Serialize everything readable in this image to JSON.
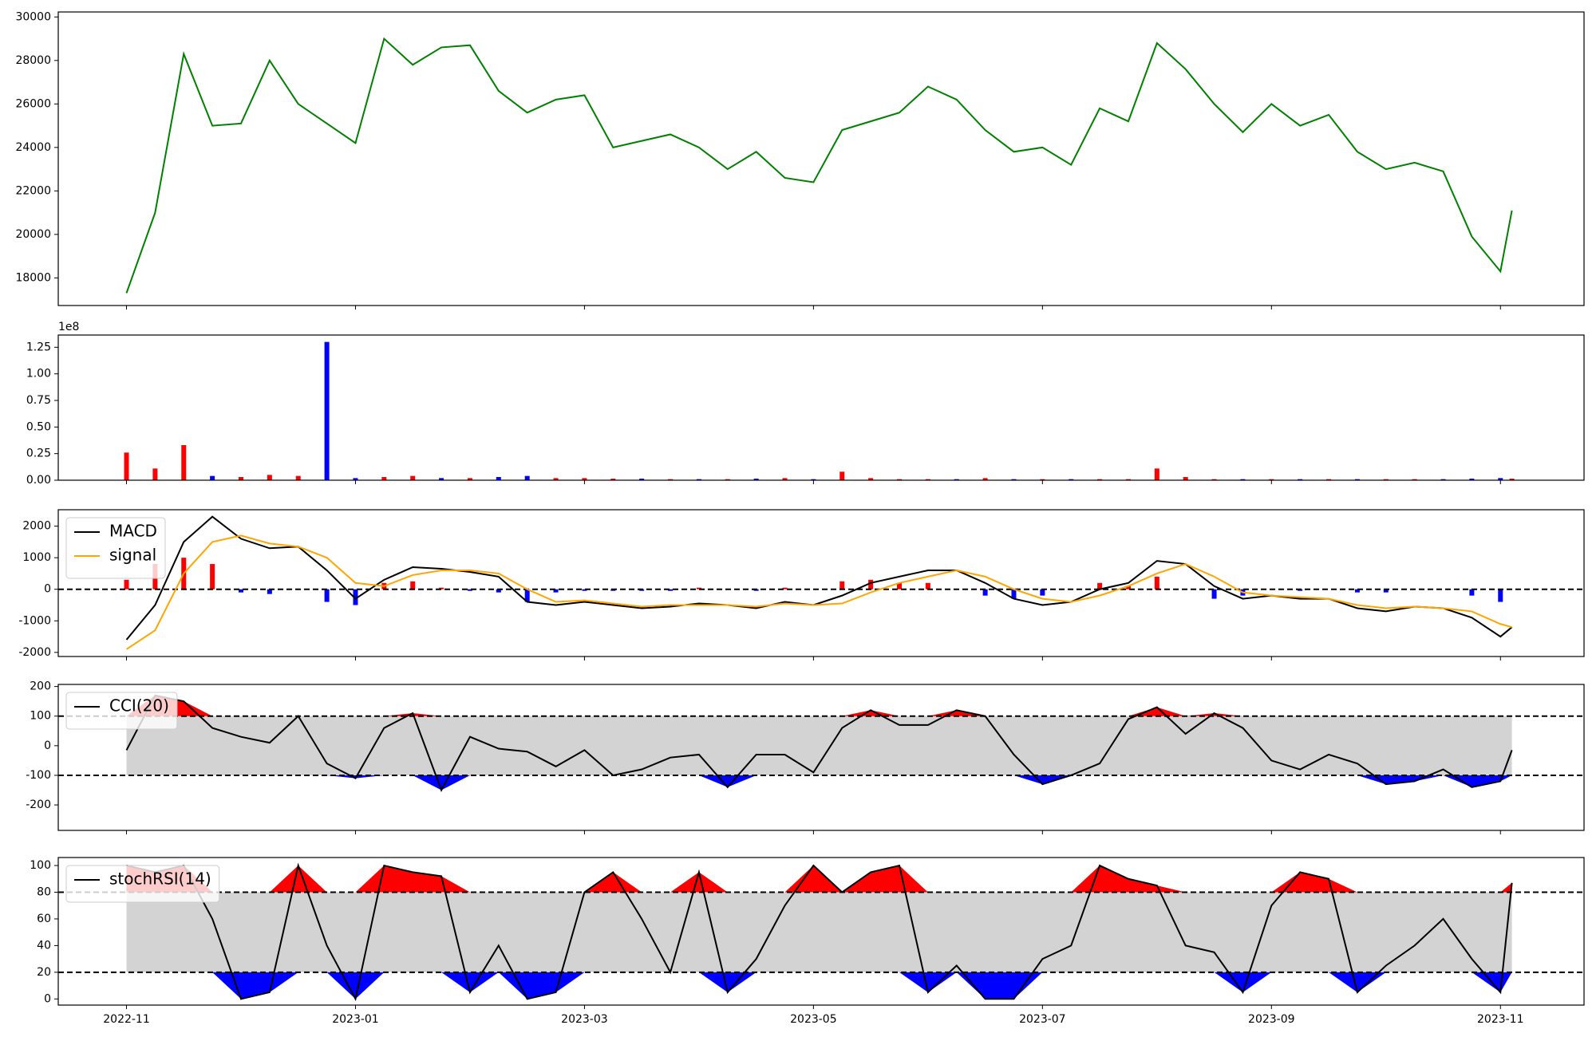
{
  "chart_data": [
    {
      "type": "line",
      "color": "green",
      "x": [
        0,
        0.25,
        0.5,
        0.75,
        1,
        1.25,
        1.5,
        1.75,
        2,
        2.25,
        2.5,
        2.75,
        3,
        3.25,
        3.5,
        3.75,
        4,
        4.25,
        4.5,
        4.75,
        5,
        5.25,
        5.5,
        5.75,
        6,
        6.25,
        6.5,
        6.75,
        7,
        7.25,
        7.5,
        7.75,
        8,
        8.25,
        8.5,
        8.75,
        9,
        9.25,
        9.5,
        9.75,
        10,
        10.25,
        10.5,
        10.75,
        11,
        11.25,
        11.5,
        11.75,
        12,
        12.1
      ],
      "values": [
        17300,
        21000,
        28300,
        25000,
        25100,
        28000,
        26000,
        25100,
        24200,
        29000,
        27800,
        28600,
        28700,
        26600,
        25600,
        26200,
        26400,
        24000,
        24300,
        24600,
        24000,
        23000,
        23800,
        22600,
        22400,
        24800,
        25200,
        25600,
        26800,
        26200,
        24800,
        23800,
        24000,
        23200,
        25800,
        25200,
        28800,
        27600,
        26000,
        24700,
        26000,
        25000,
        25500,
        23800,
        23000,
        23300,
        22900,
        19900,
        18300,
        21100
      ],
      "xlim": [
        -0.596,
        12.73
      ],
      "ylim": [
        16730,
        30230
      ],
      "yticks": [
        18000,
        20000,
        22000,
        24000,
        26000,
        28000,
        30000
      ]
    },
    {
      "type": "bar",
      "y_offset_label": "1e8",
      "x": [
        0,
        0.25,
        0.5,
        0.75,
        1,
        1.25,
        1.5,
        1.75,
        2,
        2.25,
        2.5,
        2.75,
        3,
        3.25,
        3.5,
        3.75,
        4,
        4.25,
        4.5,
        4.75,
        5,
        5.25,
        5.5,
        5.75,
        6,
        6.25,
        6.5,
        6.75,
        7,
        7.25,
        7.5,
        7.75,
        8,
        8.25,
        8.5,
        8.75,
        9,
        9.25,
        9.5,
        9.75,
        10,
        10.25,
        10.5,
        10.75,
        11,
        11.25,
        11.5,
        11.75,
        12,
        12.1
      ],
      "values": [
        26000000,
        11000000,
        33000000,
        4000000,
        3000000,
        5000000,
        4000000,
        130000000,
        2000000,
        3000000,
        4000000,
        2000000,
        2000000,
        3000000,
        4000000,
        2000000,
        2000000,
        1500000,
        1500000,
        1000000,
        1000000,
        1000000,
        1500000,
        2000000,
        1000000,
        8000000,
        2000000,
        1000000,
        1000000,
        1000000,
        2000000,
        1000000,
        1000000,
        1000000,
        1000000,
        1000000,
        11000000,
        3000000,
        1000000,
        1000000,
        1000000,
        1000000,
        1000000,
        1000000,
        1000000,
        1000000,
        1000000,
        1500000,
        2000000,
        1500000
      ],
      "colors": [
        "red",
        "red",
        "red",
        "blue",
        "red",
        "red",
        "red",
        "blue",
        "blue",
        "red",
        "red",
        "blue",
        "red",
        "blue",
        "blue",
        "red",
        "red",
        "red",
        "blue",
        "red",
        "blue",
        "red",
        "blue",
        "red",
        "blue",
        "red",
        "red",
        "red",
        "red",
        "blue",
        "red",
        "blue",
        "red",
        "blue",
        "red",
        "red",
        "red",
        "red",
        "red",
        "blue",
        "red",
        "blue",
        "red",
        "blue",
        "red",
        "red",
        "blue",
        "blue",
        "blue",
        "red"
      ],
      "xlim": [
        -0.596,
        12.73
      ],
      "ylim": [
        0,
        136500000
      ],
      "yticks": [
        {
          "value": 0,
          "label": "0.00"
        },
        {
          "value": 25000000,
          "label": "0.25"
        },
        {
          "value": 50000000,
          "label": "0.50"
        },
        {
          "value": 75000000,
          "label": "0.75"
        },
        {
          "value": 100000000,
          "label": "1.00"
        },
        {
          "value": 125000000,
          "label": "1.25"
        }
      ]
    },
    {
      "type": "macd",
      "legend": "upper left",
      "hlines": [
        0
      ],
      "x": [
        0,
        0.25,
        0.5,
        0.75,
        1,
        1.25,
        1.5,
        1.75,
        2,
        2.25,
        2.5,
        2.75,
        3,
        3.25,
        3.5,
        3.75,
        4,
        4.25,
        4.5,
        4.75,
        5,
        5.25,
        5.5,
        5.75,
        6,
        6.25,
        6.5,
        6.75,
        7,
        7.25,
        7.5,
        7.75,
        8,
        8.25,
        8.5,
        8.75,
        9,
        9.25,
        9.5,
        9.75,
        10,
        10.25,
        10.5,
        10.75,
        11,
        11.25,
        11.5,
        11.75,
        12,
        12.1
      ],
      "histogram": {
        "up_color": "red",
        "down_color": "blue",
        "values": [
          300,
          800,
          1000,
          800,
          -100,
          -150,
          0,
          -400,
          -500,
          200,
          250,
          50,
          -50,
          -100,
          -400,
          -100,
          -50,
          -50,
          -50,
          -50,
          50,
          0,
          -50,
          50,
          0,
          250,
          300,
          200,
          200,
          0,
          -200,
          -300,
          -200,
          0,
          200,
          100,
          400,
          0,
          -300,
          -200,
          0,
          -50,
          0,
          -100,
          -100,
          0,
          0,
          -200,
          -400,
          0
        ]
      },
      "series": [
        {
          "name": "MACD",
          "color": "black",
          "values": [
            -1600,
            -500,
            1500,
            2300,
            1600,
            1300,
            1350,
            600,
            -300,
            300,
            700,
            650,
            550,
            400,
            -400,
            -500,
            -400,
            -500,
            -600,
            -550,
            -450,
            -500,
            -600,
            -400,
            -500,
            -200,
            200,
            400,
            600,
            600,
            200,
            -300,
            -500,
            -400,
            0,
            200,
            900,
            800,
            100,
            -300,
            -200,
            -300,
            -300,
            -600,
            -700,
            -550,
            -600,
            -900,
            -1500,
            -1200
          ]
        },
        {
          "name": "signal",
          "color": "orange",
          "values": [
            -1900,
            -1300,
            500,
            1500,
            1700,
            1450,
            1350,
            1000,
            200,
            100,
            450,
            600,
            600,
            500,
            0,
            -400,
            -350,
            -450,
            -550,
            -500,
            -500,
            -500,
            -550,
            -450,
            -500,
            -450,
            -100,
            200,
            400,
            600,
            400,
            0,
            -300,
            -400,
            -200,
            100,
            500,
            800,
            400,
            -100,
            -200,
            -250,
            -300,
            -500,
            -600,
            -550,
            -600,
            -700,
            -1100,
            -1200
          ]
        }
      ],
      "xlim": [
        -0.596,
        12.73
      ],
      "ylim": [
        -2130,
        2520
      ],
      "yticks": [
        -2000,
        -1000,
        0,
        1000,
        2000
      ]
    },
    {
      "type": "oscillator",
      "legend": "upper left",
      "hlines": [
        -100,
        100
      ],
      "band_color": "lightgrey",
      "over_color": "red",
      "under_color": "blue",
      "x": [
        0,
        0.25,
        0.5,
        0.75,
        1,
        1.25,
        1.5,
        1.75,
        2,
        2.25,
        2.5,
        2.75,
        3,
        3.25,
        3.5,
        3.75,
        4,
        4.25,
        4.5,
        4.75,
        5,
        5.25,
        5.5,
        5.75,
        6,
        6.25,
        6.5,
        6.75,
        7,
        7.25,
        7.5,
        7.75,
        8,
        8.25,
        8.5,
        8.75,
        9,
        9.25,
        9.5,
        9.75,
        10,
        10.25,
        10.5,
        10.75,
        11,
        11.25,
        11.5,
        11.75,
        12,
        12.1
      ],
      "series": [
        {
          "name": "CCI(20)",
          "color": "black",
          "values": [
            -15,
            170,
            150,
            60,
            30,
            10,
            100,
            -60,
            -110,
            60,
            110,
            -150,
            30,
            -10,
            -20,
            -70,
            -15,
            -100,
            -80,
            -40,
            -30,
            -140,
            -30,
            -30,
            -90,
            60,
            120,
            70,
            70,
            120,
            100,
            -30,
            -130,
            -100,
            -60,
            90,
            130,
            40,
            110,
            60,
            -50,
            -80,
            -30,
            -60,
            -130,
            -120,
            -80,
            -140,
            -120,
            -15
          ]
        }
      ],
      "xlim": [
        -0.596,
        12.73
      ],
      "ylim": [
        -286,
        207
      ],
      "yticks": [
        -200,
        -100,
        0,
        100,
        200
      ]
    },
    {
      "type": "oscillator",
      "legend": "upper left",
      "hlines": [
        20,
        80
      ],
      "band_color": "lightgrey",
      "over_color": "red",
      "under_color": "blue",
      "x": [
        0,
        0.25,
        0.5,
        0.75,
        1,
        1.25,
        1.5,
        1.75,
        2,
        2.25,
        2.5,
        2.75,
        3,
        3.25,
        3.5,
        3.75,
        4,
        4.25,
        4.5,
        4.75,
        5,
        5.25,
        5.5,
        5.75,
        6,
        6.25,
        6.5,
        6.75,
        7,
        7.25,
        7.5,
        7.75,
        8,
        8.25,
        8.5,
        8.75,
        9,
        9.25,
        9.5,
        9.75,
        10,
        10.25,
        10.5,
        10.75,
        11,
        11.25,
        11.5,
        11.75,
        12,
        12.1
      ],
      "series": [
        {
          "name": "stochRSI(14)",
          "color": "black",
          "values": [
            100,
            95,
            100,
            60,
            0,
            5,
            100,
            40,
            0,
            100,
            95,
            92,
            5,
            40,
            0,
            5,
            80,
            95,
            60,
            20,
            95,
            5,
            30,
            70,
            100,
            80,
            95,
            100,
            5,
            25,
            0,
            0,
            30,
            40,
            100,
            90,
            85,
            40,
            35,
            5,
            70,
            95,
            90,
            5,
            25,
            40,
            60,
            30,
            5,
            87
          ]
        }
      ],
      "xlim": [
        -0.596,
        12.73
      ],
      "ylim": [
        -4.6,
        106
      ],
      "yticks": [
        0,
        20,
        40,
        60,
        80,
        100
      ],
      "xticks": [
        {
          "value": 0,
          "label": "2022-11"
        },
        {
          "value": 2,
          "label": "2023-01"
        },
        {
          "value": 4,
          "label": "2023-03"
        },
        {
          "value": 6,
          "label": "2023-05"
        },
        {
          "value": 8,
          "label": "2023-07"
        },
        {
          "value": 10,
          "label": "2023-09"
        },
        {
          "value": 12,
          "label": "2023-11"
        }
      ]
    }
  ]
}
